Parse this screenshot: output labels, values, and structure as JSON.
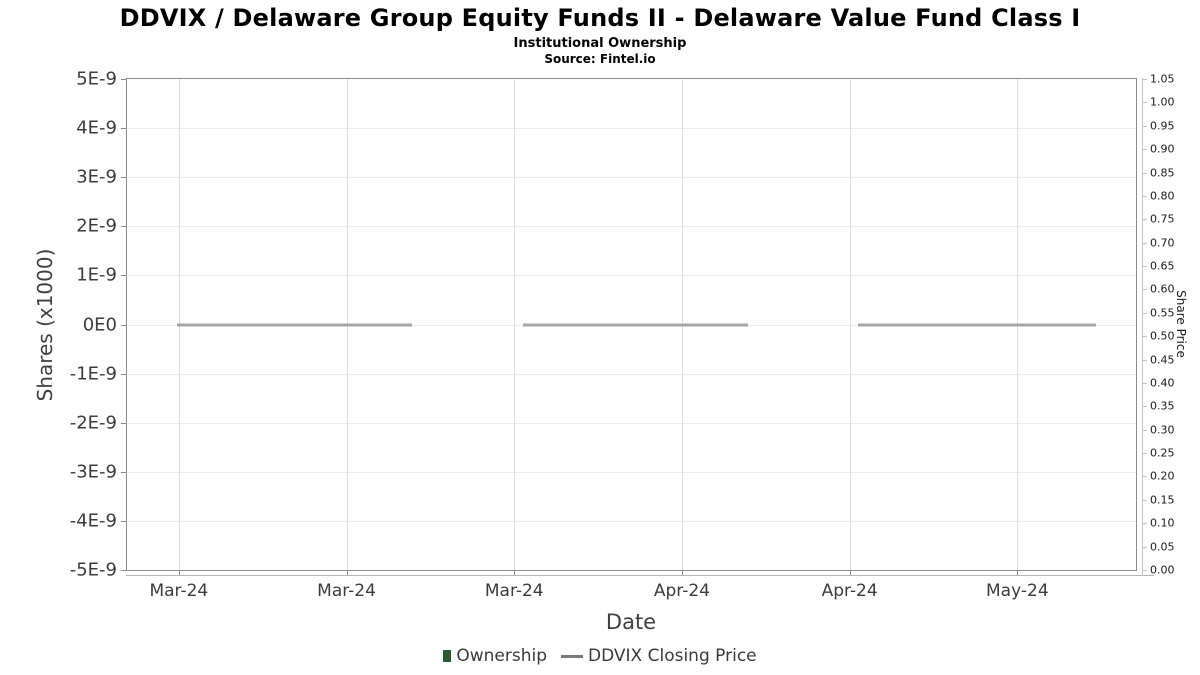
{
  "header": {
    "title": "DDVIX / Delaware Group Equity Funds II - Delaware Value Fund Class I",
    "subtitle": "Institutional Ownership",
    "source": "Source: Fintel.io"
  },
  "chart_data": {
    "type": "line",
    "title": "DDVIX / Delaware Group Equity Funds II - Delaware Value Fund Class I",
    "subtitle": "Institutional Ownership",
    "source": "Source: Fintel.io",
    "grid": true,
    "legend_position": "bottom",
    "x_axis": {
      "label": "Date",
      "tick_labels": [
        "Mar-24",
        "Mar-24",
        "Mar-24",
        "Apr-24",
        "Apr-24",
        "May-24"
      ],
      "tick_start_frac": 0.0514,
      "tick_step_frac": 0.1662
    },
    "y_axis_left": {
      "label": "Shares (x1000)",
      "tick_labels": [
        "5E-9",
        "4E-9",
        "3E-9",
        "2E-9",
        "1E-9",
        "0E0",
        "-1E-9",
        "-2E-9",
        "-3E-9",
        "-4E-9",
        "-5E-9"
      ],
      "min": -5e-09,
      "max": 5e-09
    },
    "y_axis_right": {
      "label": "Share Price",
      "tick_labels": [
        "1.05",
        "1.00",
        "0.95",
        "0.90",
        "0.85",
        "0.80",
        "0.75",
        "0.70",
        "0.65",
        "0.60",
        "0.55",
        "0.50",
        "0.45",
        "0.40",
        "0.35",
        "0.30",
        "0.25",
        "0.20",
        "0.15",
        "0.10",
        "0.05",
        "0.00"
      ],
      "min": 0.0,
      "max": 1.05
    },
    "series": [
      {
        "name": "Ownership",
        "type": "bar",
        "color": "#265b35",
        "values": []
      },
      {
        "name": "DDVIX Closing Price",
        "type": "line",
        "color": "#a6a6a6",
        "value_label": "0E0",
        "y_frac": 0.5,
        "segments": [
          {
            "x0_frac": 0.0495,
            "x1_frac": 0.2829
          },
          {
            "x0_frac": 0.3927,
            "x1_frac": 0.6152
          },
          {
            "x0_frac": 0.724,
            "x1_frac": 0.9604
          }
        ]
      }
    ]
  },
  "legend": {
    "items": [
      {
        "label": "Ownership",
        "marker": "square",
        "color": "#265b35"
      },
      {
        "label": "DDVIX Closing Price",
        "marker": "line",
        "color": "#7a7a7a"
      }
    ]
  },
  "colors": {
    "grid_h": "#ededed",
    "grid_v": "#dedede",
    "plot_border": "#8a8a8a",
    "axis_secondary": "#c4c4c4",
    "price_line": "#a6a6a6"
  }
}
